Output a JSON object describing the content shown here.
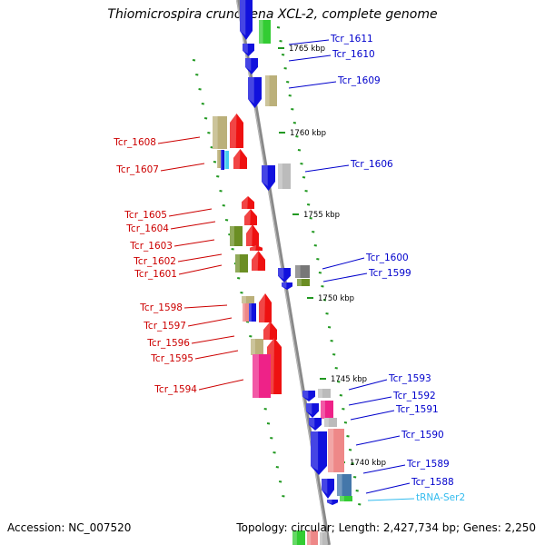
{
  "title": "Thiomicrospira crunogena XCL-2, complete genome",
  "footer": {
    "accession": "Accession: NC_007520",
    "topology": "Topology: circular; Length: 2,427,734 bp; Genes: 2,250"
  },
  "colors": {
    "forward_labels": "#cc0000",
    "reverse_labels": "#0000cc",
    "rna_label": "#33bbee",
    "backbone": "#888888",
    "ticks": "#229922"
  },
  "scale_labels": [
    "1765 kbp",
    "1760 kbp",
    "1755 kbp",
    "1750 kbp",
    "1745 kbp",
    "1740 kbp"
  ],
  "left_genes": [
    "Tcr_1608",
    "Tcr_1607",
    "Tcr_1605",
    "Tcr_1604",
    "Tcr_1603",
    "Tcr_1602",
    "Tcr_1601",
    "Tcr_1598",
    "Tcr_1597",
    "Tcr_1596",
    "Tcr_1595",
    "Tcr_1594"
  ],
  "right_genes": [
    "Tcr_1611",
    "Tcr_1610",
    "Tcr_1609",
    "Tcr_1606",
    "Tcr_1600",
    "Tcr_1599",
    "Tcr_1593",
    "Tcr_1592",
    "Tcr_1591",
    "Tcr_1590",
    "Tcr_1589",
    "Tcr_1588"
  ],
  "rna_genes": [
    "tRNA-Ser2"
  ]
}
